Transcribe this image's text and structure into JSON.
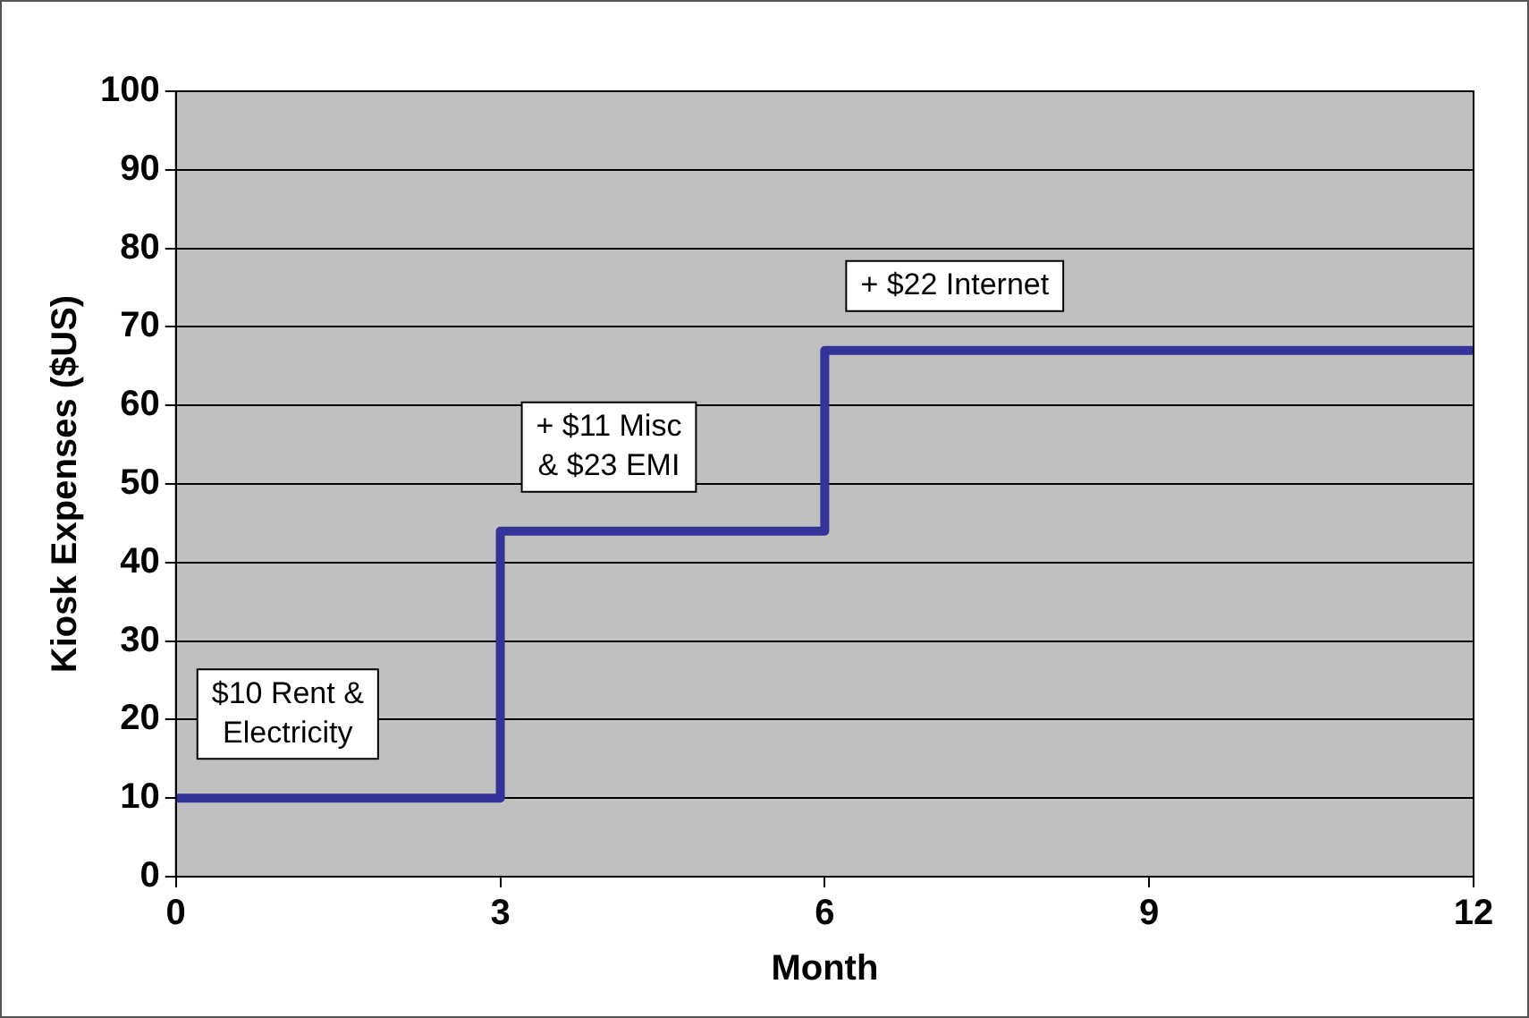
{
  "chart_data": {
    "type": "step",
    "xlabel": "Month",
    "ylabel": "Kiosk Expenses ($US)",
    "x": [
      0,
      3,
      6,
      12
    ],
    "series": [
      {
        "color": "#333399",
        "values": [
          10,
          44,
          67,
          67
        ]
      }
    ],
    "xlim": [
      0,
      12
    ],
    "xticks": [
      0,
      3,
      6,
      9,
      12
    ],
    "ylim": [
      0,
      100
    ],
    "yticks": [
      0,
      10,
      20,
      30,
      40,
      50,
      60,
      70,
      80,
      90,
      100
    ],
    "grid": "y",
    "legend": false,
    "marker": "none",
    "line_style": "solid",
    "annotations": [
      "$10 Rent &\nElectricity",
      "+ $11 Misc\n& $23 EMI",
      "+ $22 Internet"
    ]
  }
}
